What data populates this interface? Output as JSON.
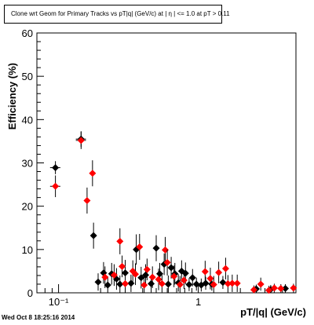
{
  "title": "Clone wrt Geom for Primary Tracks vs pT|q| (GeV/c) at |  η | <= 1.0 at pT > 0.11",
  "footer": "Wed Oct  8 18:25:16 2014",
  "colors": {
    "black_series": "#000000",
    "red_series": "#ff0000",
    "axis": "#000000"
  },
  "chart_data": {
    "type": "scatter",
    "title": "Clone wrt Geom for Primary Tracks vs pT|q| (GeV/c) at |  η | <= 1.0 at pT > 0.11",
    "xlabel": "pT/|q| (GeV/c)",
    "ylabel": "Efficiency (%)",
    "xscale": "log",
    "xlim": [
      0.07,
      5.0
    ],
    "ylim": [
      0,
      60
    ],
    "y_ticks": [
      0,
      10,
      20,
      30,
      40,
      50,
      60
    ],
    "x_ticks": [
      0.1,
      1
    ],
    "x_tick_labels": [
      "10⁻¹",
      "1"
    ],
    "grid": false,
    "series": [
      {
        "color": "#000000",
        "points": [
          {
            "x": 0.095,
            "y": 28.9,
            "xerr": 0.008,
            "yerr": 1.5
          },
          {
            "x": 0.145,
            "y": 35.5,
            "xerr": 0.012,
            "yerr": 1.8
          },
          {
            "x": 0.178,
            "y": 13.2,
            "xerr": 0.004,
            "yerr": 3.0
          },
          {
            "x": 0.192,
            "y": 2.5,
            "yerr": 2.0
          },
          {
            "x": 0.21,
            "y": 4.6,
            "yerr": 2.5
          },
          {
            "x": 0.225,
            "y": 1.8,
            "yerr": 2.0
          },
          {
            "x": 0.24,
            "y": 4.4,
            "yerr": 2.5
          },
          {
            "x": 0.26,
            "y": 3.2,
            "yerr": 2.5
          },
          {
            "x": 0.275,
            "y": 2.0,
            "yerr": 2.0
          },
          {
            "x": 0.3,
            "y": 4.6,
            "yerr": 3.0
          },
          {
            "x": 0.33,
            "y": 2.2,
            "yerr": 2.0
          },
          {
            "x": 0.36,
            "y": 10.0,
            "yerr": 3.5
          },
          {
            "x": 0.39,
            "y": 3.5,
            "yerr": 2.5
          },
          {
            "x": 0.42,
            "y": 4.1,
            "yerr": 2.5
          },
          {
            "x": 0.46,
            "y": 2.1,
            "yerr": 2.0
          },
          {
            "x": 0.5,
            "y": 10.3,
            "yerr": 3.0
          },
          {
            "x": 0.53,
            "y": 4.4,
            "yerr": 2.5
          },
          {
            "x": 0.57,
            "y": 6.6,
            "yerr": 2.5
          },
          {
            "x": 0.61,
            "y": 2.0,
            "yerr": 2.0
          },
          {
            "x": 0.64,
            "y": 5.8,
            "yerr": 2.5
          },
          {
            "x": 0.68,
            "y": 4.4,
            "yerr": 2.5
          },
          {
            "x": 0.72,
            "y": 2.3,
            "yerr": 2.0
          },
          {
            "x": 0.76,
            "y": 5.0,
            "yerr": 2.5
          },
          {
            "x": 0.81,
            "y": 4.5,
            "yerr": 2.5
          },
          {
            "x": 0.86,
            "y": 1.9,
            "yerr": 1.5
          },
          {
            "x": 0.91,
            "y": 3.5,
            "yerr": 2.0
          },
          {
            "x": 0.97,
            "y": 2.0,
            "yerr": 1.5
          },
          {
            "x": 1.05,
            "y": 1.8,
            "yerr": 1.5
          },
          {
            "x": 1.13,
            "y": 2.2,
            "yerr": 1.5
          },
          {
            "x": 1.25,
            "y": 2.0,
            "yerr": 1.5
          },
          {
            "x": 1.5,
            "y": 2.4,
            "yerr": 1.5
          },
          {
            "x": 2.6,
            "y": 0.9,
            "yerr": 1.0
          },
          {
            "x": 3.3,
            "y": 0.8,
            "yerr": 1.0
          },
          {
            "x": 4.2,
            "y": 1.0,
            "yerr": 1.0
          }
        ]
      },
      {
        "color": "#ff0000",
        "points": [
          {
            "x": 0.095,
            "y": 24.6,
            "xerr": 0.008,
            "yerr": 2.5
          },
          {
            "x": 0.145,
            "y": 35.2,
            "xerr": 0.012,
            "yerr": 2.0
          },
          {
            "x": 0.16,
            "y": 21.3,
            "yerr": 3.0
          },
          {
            "x": 0.175,
            "y": 27.6,
            "yerr": 3.0
          },
          {
            "x": 0.215,
            "y": 3.6,
            "yerr": 2.5
          },
          {
            "x": 0.25,
            "y": 4.1,
            "yerr": 2.5
          },
          {
            "x": 0.275,
            "y": 11.9,
            "yerr": 3.0
          },
          {
            "x": 0.285,
            "y": 6.1,
            "yerr": 2.5
          },
          {
            "x": 0.3,
            "y": 2.1,
            "yerr": 2.0
          },
          {
            "x": 0.34,
            "y": 5.0,
            "yerr": 2.5
          },
          {
            "x": 0.355,
            "y": 4.3,
            "yerr": 2.5
          },
          {
            "x": 0.38,
            "y": 10.6,
            "yerr": 3.0
          },
          {
            "x": 0.41,
            "y": 1.8,
            "yerr": 2.0
          },
          {
            "x": 0.43,
            "y": 5.4,
            "yerr": 2.5
          },
          {
            "x": 0.47,
            "y": 3.6,
            "yerr": 2.5
          },
          {
            "x": 0.52,
            "y": 3.1,
            "yerr": 2.5
          },
          {
            "x": 0.55,
            "y": 2.1,
            "yerr": 2.0
          },
          {
            "x": 0.58,
            "y": 9.9,
            "yerr": 3.0
          },
          {
            "x": 0.6,
            "y": 7.0,
            "yerr": 3.0
          },
          {
            "x": 0.67,
            "y": 3.8,
            "yerr": 2.5
          },
          {
            "x": 0.74,
            "y": 1.9,
            "yerr": 2.0
          },
          {
            "x": 0.79,
            "y": 2.9,
            "yerr": 2.0
          },
          {
            "x": 1.12,
            "y": 4.9,
            "yerr": 2.5
          },
          {
            "x": 1.22,
            "y": 3.3,
            "yerr": 2.5
          },
          {
            "x": 1.29,
            "y": 1.9,
            "yerr": 2.0
          },
          {
            "x": 1.4,
            "y": 4.7,
            "yerr": 2.5
          },
          {
            "x": 1.57,
            "y": 5.6,
            "yerr": 2.5
          },
          {
            "x": 1.63,
            "y": 2.1,
            "yerr": 2.0
          },
          {
            "x": 1.75,
            "y": 2.2,
            "yerr": 2.0
          },
          {
            "x": 1.9,
            "y": 2.2,
            "yerr": 2.0
          },
          {
            "x": 2.5,
            "y": 0.7,
            "yerr": 1.0
          },
          {
            "x": 2.8,
            "y": 2.0,
            "yerr": 1.5
          },
          {
            "x": 3.2,
            "y": 0.6,
            "yerr": 1.0
          },
          {
            "x": 3.5,
            "y": 1.1,
            "yerr": 1.0
          },
          {
            "x": 3.9,
            "y": 1.0,
            "yerr": 1.0
          },
          {
            "x": 4.8,
            "y": 1.1,
            "yerr": 1.0
          }
        ]
      }
    ]
  }
}
